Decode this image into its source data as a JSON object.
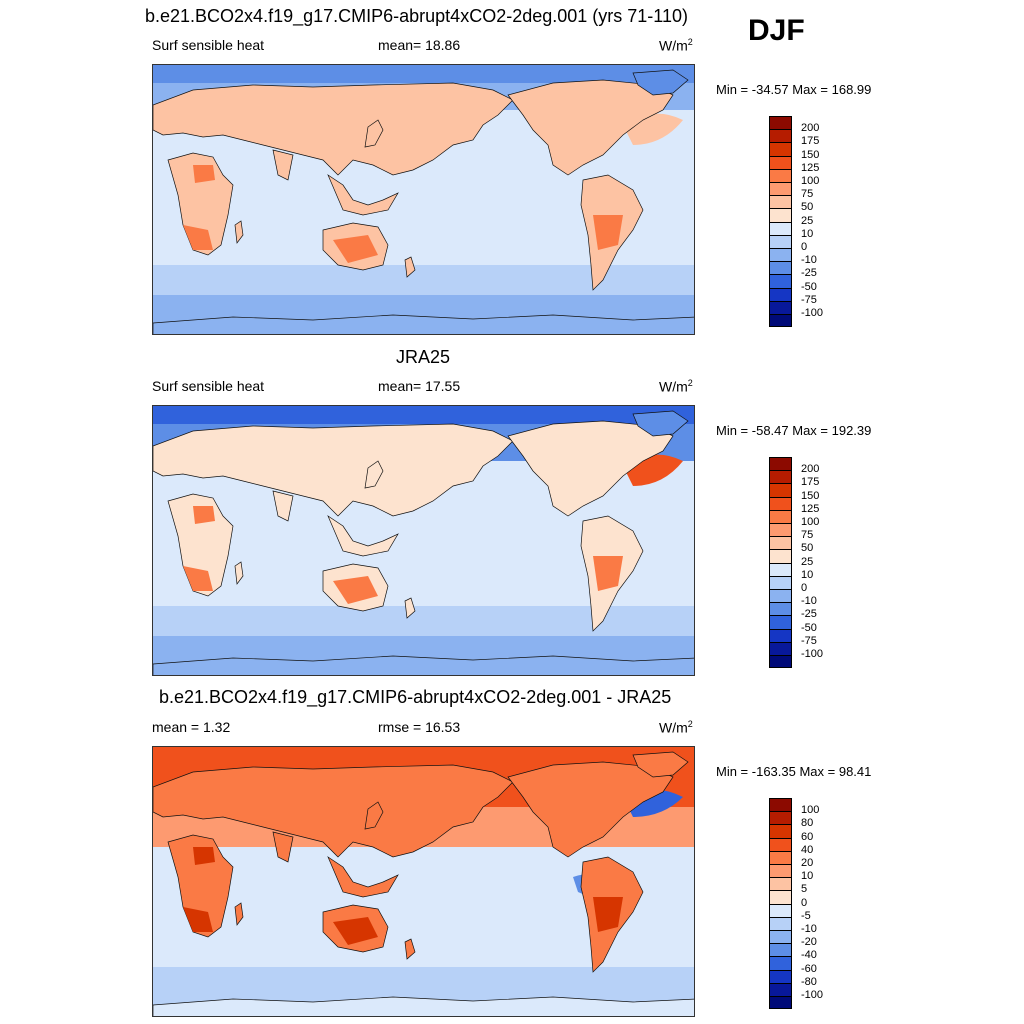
{
  "season": "DJF",
  "panels": [
    {
      "title": "b.e21.BCO2x4.f19_g17.CMIP6-abrupt4xCO2-2deg.001 (yrs 71-110)",
      "left": "Surf sensible heat",
      "center": "mean=  18.86",
      "units": "W/m",
      "units_sup": "2",
      "minmax": "Min = -34.57 Max = 168.99",
      "colorbar": {
        "labels": [
          "200",
          "175",
          "150",
          "125",
          "100",
          "75",
          "50",
          "25",
          "10",
          "0",
          "-10",
          "-25",
          "-50",
          "-75",
          "-100"
        ],
        "colors": [
          "#8c0a00",
          "#b51c00",
          "#d63500",
          "#f0511c",
          "#fa7a45",
          "#fd9a70",
          "#fdc3a3",
          "#fde3cf",
          "#dbe9fb",
          "#b7d1f7",
          "#8bb2f0",
          "#5d8ee6",
          "#3062dc",
          "#1536c4",
          "#08189a",
          "#000a78"
        ]
      },
      "map_palette": "full"
    },
    {
      "title": "JRA25",
      "left": "Surf sensible heat",
      "center": "mean=  17.55",
      "units": "W/m",
      "units_sup": "2",
      "minmax": "Min = -58.47 Max = 192.39",
      "colorbar": {
        "labels": [
          "200",
          "175",
          "150",
          "125",
          "100",
          "75",
          "50",
          "25",
          "10",
          "0",
          "-10",
          "-25",
          "-50",
          "-75",
          "-100"
        ],
        "colors": [
          "#8c0a00",
          "#b51c00",
          "#d63500",
          "#f0511c",
          "#fa7a45",
          "#fd9a70",
          "#fdc3a3",
          "#fde3cf",
          "#dbe9fb",
          "#b7d1f7",
          "#8bb2f0",
          "#5d8ee6",
          "#3062dc",
          "#1536c4",
          "#08189a",
          "#000a78"
        ]
      },
      "map_palette": "obs"
    },
    {
      "title": "b.e21.BCO2x4.f19_g17.CMIP6-abrupt4xCO2-2deg.001 - JRA25",
      "left": "mean =   1.32",
      "center": "rmse =  16.53",
      "units": "W/m",
      "units_sup": "2",
      "minmax": "Min = -163.35 Max =  98.41",
      "colorbar": {
        "labels": [
          "100",
          "80",
          "60",
          "40",
          "20",
          "10",
          "5",
          "0",
          "-5",
          "-10",
          "-20",
          "-40",
          "-60",
          "-80",
          "-100"
        ],
        "colors": [
          "#8c0a00",
          "#b51c00",
          "#d63500",
          "#f0511c",
          "#fa7a45",
          "#fd9a70",
          "#fdc3a3",
          "#fde3cf",
          "#dbe9fb",
          "#b7d1f7",
          "#8bb2f0",
          "#5d8ee6",
          "#3062dc",
          "#1536c4",
          "#08189a",
          "#000a78"
        ]
      },
      "map_palette": "diff"
    }
  ]
}
